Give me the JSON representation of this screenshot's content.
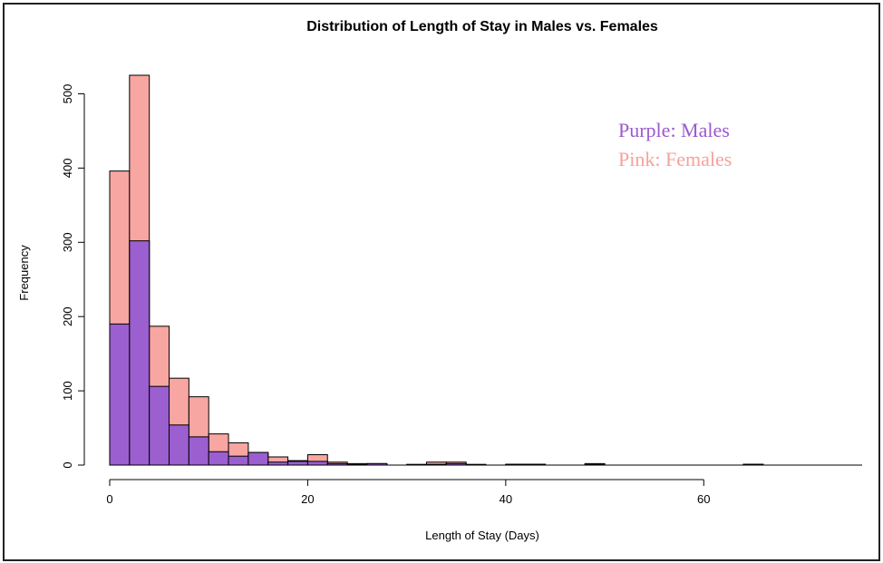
{
  "chart_data": {
    "type": "bar",
    "title": "Distribution of Length of Stay in Males vs. Females",
    "xlabel": "Length of Stay (Days)",
    "ylabel": "Frequency",
    "xlim": [
      0,
      76
    ],
    "ylim": [
      0,
      525
    ],
    "xticks": [
      0,
      20,
      40,
      60
    ],
    "yticks": [
      0,
      100,
      200,
      300,
      400,
      500
    ],
    "bin_width": 2,
    "grid": false,
    "legend_position": "top-right",
    "legend": [
      {
        "text": "Purple: Males",
        "color": "#9B59D0"
      },
      {
        "text": "Pink: Females",
        "color": "#F7A19C"
      }
    ],
    "series": [
      {
        "color": "#9B5FD0",
        "bin_starts": [
          0,
          2,
          4,
          6,
          8,
          10,
          12,
          14,
          16,
          18,
          20,
          22,
          24,
          26,
          32,
          34,
          40,
          42,
          48,
          64
        ],
        "values": [
          190,
          302,
          106,
          54,
          38,
          18,
          12,
          17,
          4,
          5,
          5,
          2,
          1,
          2,
          1,
          2,
          1,
          1,
          1,
          1
        ]
      },
      {
        "color": "#F7A19C",
        "bin_starts": [
          0,
          2,
          4,
          6,
          8,
          10,
          12,
          14,
          16,
          18,
          20,
          22,
          24,
          26,
          30,
          32,
          34,
          36,
          40,
          42,
          48,
          64
        ],
        "values": [
          396,
          525,
          187,
          117,
          92,
          42,
          30,
          15,
          11,
          6,
          14,
          4,
          2,
          1,
          1,
          4,
          4,
          1,
          1,
          1,
          2,
          1
        ]
      }
    ]
  }
}
